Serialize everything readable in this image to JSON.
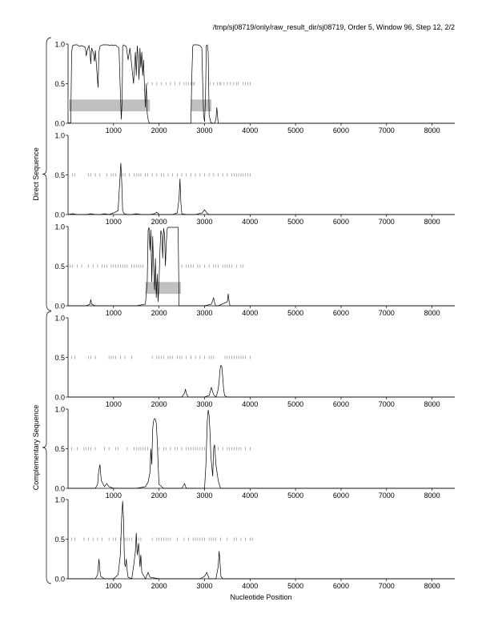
{
  "header": {
    "title": "/tmp/sj08719/only/raw_result_dir/sj08719, Order 5, Window 96, Step 12, 2/2"
  },
  "axes": {
    "xlabel": "Nucleotide Position",
    "xlim": [
      0,
      8500
    ],
    "ylim": [
      0,
      1
    ],
    "xticks": [
      1000,
      2000,
      3000,
      4000,
      5000,
      6000,
      7000,
      8000
    ],
    "yticks": [
      0.0,
      0.5,
      1.0
    ],
    "ytick_labels": [
      "0.0",
      "0.5",
      "1.0"
    ]
  },
  "groups": [
    {
      "label": "Direct Sequence",
      "panels": [
        0,
        1,
        2
      ]
    },
    {
      "label": "Complementary Sequence",
      "panels": [
        3,
        4,
        5
      ]
    }
  ],
  "colors": {
    "line": "#000000",
    "gene_bar": "#c0c0c0",
    "codon_tick": "#888888"
  },
  "chart_data": [
    {
      "type": "line",
      "panel": 1,
      "x": [
        0,
        60,
        80,
        100,
        150,
        200,
        250,
        300,
        380,
        400,
        420,
        460,
        480,
        500,
        520,
        560,
        580,
        600,
        640,
        660,
        670,
        680,
        700,
        720,
        760,
        800,
        840,
        880,
        920,
        960,
        1000,
        1040,
        1080,
        1120,
        1150,
        1170,
        1190,
        1200,
        1220,
        1240,
        1280,
        1320,
        1360,
        1400,
        1440,
        1480,
        1500,
        1520,
        1540,
        1560,
        1580,
        1600,
        1620,
        1640,
        1660,
        1680,
        1700,
        1720,
        1740,
        1760,
        1780,
        1800,
        2000,
        2200,
        2400,
        2600,
        2700,
        2720,
        2740,
        2760,
        2800,
        2850,
        2900,
        2940,
        2960,
        2980,
        3000,
        3020,
        3040,
        3060,
        3080,
        3100,
        3140,
        3180,
        3220,
        3250,
        3270,
        3300,
        3500,
        4000,
        5000,
        6000,
        7000,
        8000,
        8500
      ],
      "values": [
        0.0,
        0.01,
        0.9,
        0.98,
        0.99,
        0.99,
        0.97,
        0.98,
        0.96,
        0.85,
        0.92,
        0.98,
        0.9,
        0.75,
        0.95,
        0.88,
        0.78,
        0.92,
        0.6,
        0.45,
        0.72,
        0.9,
        0.97,
        0.98,
        0.99,
        0.99,
        0.99,
        0.99,
        0.98,
        0.99,
        0.98,
        0.99,
        0.97,
        0.95,
        0.4,
        0.05,
        0.3,
        0.97,
        0.99,
        0.98,
        0.97,
        0.8,
        0.95,
        0.72,
        0.5,
        0.9,
        0.6,
        0.98,
        0.85,
        0.55,
        0.95,
        0.7,
        0.9,
        0.6,
        0.8,
        0.45,
        0.2,
        0.5,
        0.12,
        0.05,
        0.01,
        0.0,
        0.0,
        0.0,
        0.0,
        0.0,
        0.0,
        0.6,
        0.97,
        0.99,
        0.99,
        0.99,
        0.98,
        0.95,
        0.5,
        0.1,
        0.02,
        0.3,
        0.98,
        0.99,
        0.9,
        0.1,
        0.01,
        0.0,
        0.0,
        0.05,
        0.2,
        0.0,
        0.0,
        0.0,
        0.0,
        0.0,
        0.0,
        0.0,
        0.0
      ],
      "gene_bars": [
        [
          0,
          1800
        ],
        [
          2700,
          3150
        ]
      ],
      "codon_ticks": [
        1750,
        1850,
        1950,
        2050,
        2150,
        2250,
        2350,
        2450,
        2550,
        2600,
        2650,
        2700,
        2750,
        2780,
        3120,
        3200,
        3280,
        3330,
        3360,
        3430,
        3500,
        3570,
        3640,
        3700,
        3740,
        3850,
        3900,
        3950,
        4000
      ]
    },
    {
      "type": "line",
      "panel": 2,
      "x": [
        0,
        100,
        200,
        300,
        400,
        500,
        600,
        700,
        800,
        900,
        1000,
        1100,
        1130,
        1160,
        1180,
        1200,
        1230,
        1300,
        1400,
        1500,
        1600,
        1700,
        1800,
        1900,
        1950,
        2000,
        2100,
        2200,
        2300,
        2400,
        2440,
        2460,
        2480,
        2500,
        2600,
        2800,
        2950,
        3000,
        3050,
        3100,
        3300,
        4000,
        5000,
        6000,
        7000,
        8000,
        8500
      ],
      "values": [
        0.0,
        0.01,
        0.0,
        0.0,
        0.0,
        0.01,
        0.0,
        0.0,
        0.01,
        0.0,
        0.02,
        0.05,
        0.35,
        0.65,
        0.4,
        0.05,
        0.01,
        0.0,
        0.0,
        0.01,
        0.0,
        0.0,
        0.0,
        0.01,
        0.03,
        0.0,
        0.0,
        0.0,
        0.0,
        0.02,
        0.2,
        0.45,
        0.15,
        0.01,
        0.0,
        0.0,
        0.02,
        0.06,
        0.02,
        0.0,
        0.0,
        0.0,
        0.0,
        0.0,
        0.0,
        0.0,
        0.0
      ],
      "gene_bars": [],
      "codon_ticks": [
        100,
        150,
        450,
        500,
        600,
        700,
        850,
        950,
        1000,
        1050,
        1150,
        1200,
        1250,
        1350,
        1450,
        1500,
        1550,
        1600,
        1700,
        1750,
        1850,
        1950,
        2050,
        2100,
        2200,
        2300,
        2400,
        2500,
        2600,
        2700,
        2800,
        2900,
        3000,
        3100,
        3200,
        3300,
        3400,
        3500,
        3600,
        3650,
        3700,
        3750,
        3800,
        3850,
        3900,
        3950,
        4000
      ]
    },
    {
      "type": "line",
      "panel": 3,
      "x": [
        0,
        400,
        480,
        500,
        520,
        600,
        1000,
        1500,
        1700,
        1740,
        1760,
        1780,
        1800,
        1820,
        1840,
        1860,
        1880,
        1900,
        1920,
        1940,
        1960,
        1980,
        2000,
        2020,
        2040,
        2060,
        2080,
        2100,
        2120,
        2140,
        2160,
        2180,
        2200,
        2240,
        2280,
        2320,
        2360,
        2400,
        2420,
        2440,
        2600,
        3000,
        3150,
        3200,
        3230,
        3250,
        3300,
        3500,
        3520,
        3540,
        3560,
        3600,
        4000,
        5000,
        6000,
        7000,
        8000,
        8500
      ],
      "values": [
        0.0,
        0.0,
        0.02,
        0.08,
        0.02,
        0.0,
        0.0,
        0.0,
        0.02,
        0.3,
        0.95,
        0.99,
        0.7,
        0.96,
        0.3,
        0.88,
        0.5,
        0.2,
        0.6,
        0.1,
        0.4,
        0.05,
        0.3,
        0.7,
        0.95,
        0.9,
        0.6,
        0.98,
        0.9,
        0.5,
        0.8,
        0.98,
        0.99,
        0.99,
        0.99,
        0.99,
        0.99,
        0.99,
        0.99,
        0.0,
        0.0,
        0.0,
        0.02,
        0.1,
        0.02,
        0.0,
        0.0,
        0.05,
        0.15,
        0.05,
        0.0,
        0.0,
        0.0,
        0.0,
        0.0,
        0.0,
        0.0,
        0.0
      ],
      "gene_bars": [
        [
          1700,
          2480
        ]
      ],
      "codon_ticks": [
        50,
        100,
        200,
        300,
        450,
        550,
        650,
        750,
        800,
        850,
        950,
        1000,
        1050,
        1100,
        1150,
        1200,
        1250,
        1300,
        1400,
        1450,
        1500,
        1550,
        1600,
        1650,
        2500,
        2600,
        2650,
        2700,
        2750,
        2850,
        2900,
        3000,
        3100,
        3200,
        3250,
        3300,
        3400,
        3450,
        3500,
        3550,
        3600,
        3700,
        3800,
        3850
      ]
    },
    {
      "type": "line",
      "panel": 4,
      "x": [
        0,
        500,
        1000,
        1500,
        2000,
        2500,
        2560,
        2580,
        2600,
        2640,
        2700,
        3000,
        3100,
        3150,
        3200,
        3250,
        3280,
        3300,
        3320,
        3340,
        3360,
        3380,
        3400,
        3420,
        3440,
        3500,
        4000,
        5000,
        6000,
        7000,
        8000,
        8500
      ],
      "values": [
        0.0,
        0.0,
        0.0,
        0.0,
        0.0,
        0.0,
        0.05,
        0.1,
        0.05,
        0.0,
        0.0,
        0.0,
        0.02,
        0.12,
        0.03,
        0.0,
        0.05,
        0.1,
        0.2,
        0.35,
        0.4,
        0.38,
        0.25,
        0.1,
        0.02,
        0.0,
        0.0,
        0.0,
        0.0,
        0.0,
        0.0,
        0.0
      ],
      "gene_bars": [],
      "codon_ticks": [
        80,
        150,
        450,
        500,
        600,
        900,
        950,
        1000,
        1050,
        1150,
        1250,
        1400,
        1850,
        1950,
        2000,
        2050,
        2100,
        2200,
        2250,
        2300,
        2400,
        2450,
        2500,
        2600,
        2700,
        2800,
        2900,
        3000,
        3100,
        3150,
        3200,
        3450,
        3500,
        3550,
        3600,
        3650,
        3700,
        3750,
        3800,
        3850,
        3900,
        4000
      ]
    },
    {
      "type": "line",
      "panel": 5,
      "x": [
        0,
        300,
        600,
        650,
        670,
        700,
        730,
        800,
        850,
        900,
        1000,
        1500,
        1700,
        1760,
        1800,
        1820,
        1840,
        1860,
        1880,
        1900,
        1920,
        1940,
        1960,
        1980,
        2000,
        2100,
        2500,
        2540,
        2560,
        2600,
        3000,
        3030,
        3060,
        3080,
        3100,
        3120,
        3140,
        3180,
        3200,
        3220,
        3250,
        3300,
        3350,
        4000,
        5000,
        6000,
        7000,
        8000,
        8500
      ],
      "values": [
        0.0,
        0.0,
        0.0,
        0.05,
        0.2,
        0.3,
        0.1,
        0.02,
        0.06,
        0.02,
        0.0,
        0.0,
        0.02,
        0.08,
        0.2,
        0.5,
        0.3,
        0.75,
        0.85,
        0.88,
        0.87,
        0.82,
        0.6,
        0.3,
        0.05,
        0.0,
        0.0,
        0.04,
        0.06,
        0.0,
        0.0,
        0.3,
        0.85,
        0.99,
        0.92,
        0.7,
        0.4,
        0.15,
        0.5,
        0.55,
        0.3,
        0.1,
        0.0,
        0.0,
        0.0,
        0.0,
        0.0,
        0.0,
        0.0
      ],
      "gene_bars": [],
      "codon_ticks": [
        80,
        200,
        350,
        400,
        450,
        500,
        600,
        800,
        900,
        1050,
        1100,
        1300,
        1450,
        1500,
        1550,
        1600,
        1650,
        1700,
        1750,
        2000,
        2100,
        2150,
        2250,
        2350,
        2400,
        2500,
        2600,
        2650,
        2700,
        2750,
        2800,
        2850,
        2900,
        2950,
        3000,
        3200,
        3300,
        3400,
        3500,
        3550,
        3600,
        3650,
        3700,
        3750,
        3800,
        3900,
        4000
      ]
    },
    {
      "type": "line",
      "panel": 6,
      "x": [
        0,
        300,
        600,
        650,
        680,
        700,
        720,
        800,
        1000,
        1100,
        1150,
        1180,
        1200,
        1220,
        1240,
        1260,
        1280,
        1300,
        1320,
        1400,
        1450,
        1480,
        1500,
        1520,
        1550,
        1580,
        1600,
        1620,
        1650,
        1700,
        1760,
        1800,
        2000,
        2500,
        2900,
        3000,
        3050,
        3100,
        3250,
        3300,
        3320,
        3340,
        3360,
        3400,
        4000,
        5000,
        6000,
        7000,
        8000,
        8500
      ],
      "values": [
        0.0,
        0.0,
        0.0,
        0.05,
        0.25,
        0.1,
        0.03,
        0.0,
        0.0,
        0.05,
        0.3,
        0.8,
        0.98,
        0.75,
        0.2,
        0.15,
        0.25,
        0.1,
        0.02,
        0.0,
        0.2,
        0.35,
        0.58,
        0.3,
        0.45,
        0.15,
        0.3,
        0.08,
        0.05,
        0.0,
        0.08,
        0.02,
        0.0,
        0.0,
        0.0,
        0.03,
        0.08,
        0.0,
        0.0,
        0.15,
        0.35,
        0.2,
        0.03,
        0.0,
        0.0,
        0.0,
        0.0,
        0.0,
        0.0,
        0.0
      ],
      "gene_bars": [],
      "codon_ticks": [
        80,
        150,
        350,
        450,
        550,
        650,
        750,
        900,
        1000,
        1050,
        1150,
        1250,
        1300,
        1350,
        1400,
        1500,
        1550,
        1600,
        1850,
        1950,
        2000,
        2050,
        2100,
        2150,
        2200,
        2250,
        2400,
        2550,
        2650,
        2750,
        2800,
        2850,
        2900,
        2950,
        3000,
        3100,
        3150,
        3200,
        3250,
        3350,
        3500,
        3650,
        3700,
        3800,
        3900,
        4000,
        4050
      ]
    }
  ]
}
